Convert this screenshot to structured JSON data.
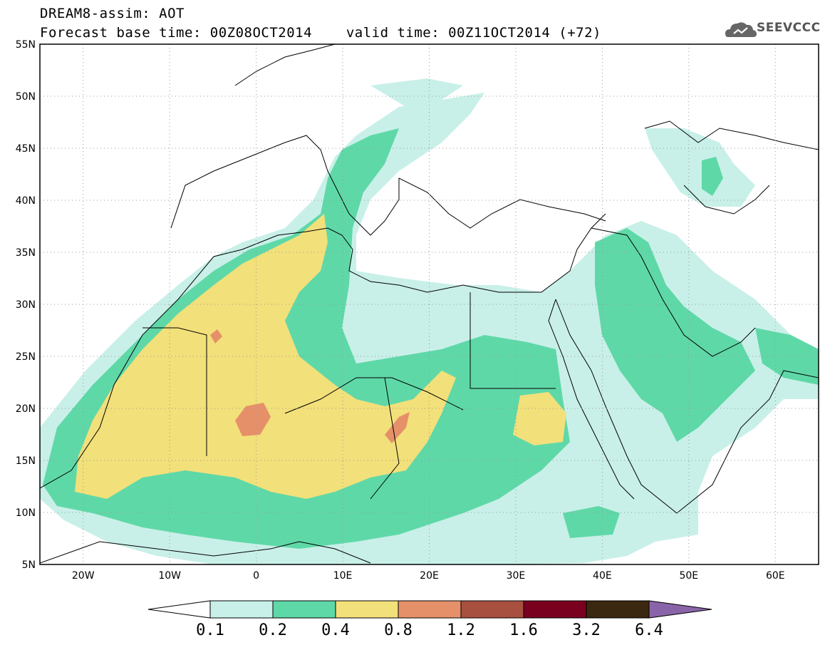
{
  "title": {
    "line1": "DREAM8-assim: AOT",
    "line2_base": "Forecast base time: 00Z08OCT2014",
    "line2_valid": "valid time: 00Z11OCT2014 (+72)"
  },
  "logo": {
    "text": "SEEVCCC",
    "icon": "cloud-icon"
  },
  "map": {
    "lat_labels": [
      "55N",
      "50N",
      "45N",
      "40N",
      "35N",
      "30N",
      "25N",
      "20N",
      "15N",
      "10N",
      "5N"
    ],
    "lon_labels": [
      "20W",
      "10W",
      "0",
      "10E",
      "20E",
      "30E",
      "40E",
      "50E",
      "60E"
    ],
    "lat_values": [
      55,
      50,
      45,
      40,
      35,
      30,
      25,
      20,
      15,
      10,
      5
    ],
    "lon_values": [
      -20,
      -10,
      0,
      10,
      20,
      30,
      40,
      50,
      60
    ],
    "extent": {
      "lon_min": -25,
      "lon_max": 65,
      "lat_min": 5,
      "lat_max": 55
    },
    "gridlines": "dotted",
    "quantity": "AOT"
  },
  "colorbar": {
    "labels": [
      "0.1",
      "0.2",
      "0.4",
      "0.8",
      "1.2",
      "1.6",
      "3.2",
      "6.4"
    ],
    "colors": [
      "#c8f0e8",
      "#5fd8a8",
      "#f2e07a",
      "#e6906a",
      "#a85040",
      "#7a0020",
      "#3a2810",
      "#8a64a8"
    ],
    "below_color": "#ffffff"
  }
}
